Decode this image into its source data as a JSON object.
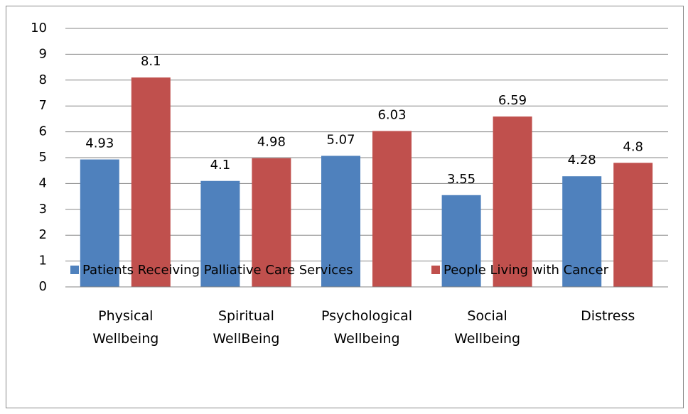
{
  "chart_data": {
    "type": "bar",
    "categories": [
      "Physical\nWellbeing",
      "Spiritual\nWellBeing",
      "Psychological\nWellbeing",
      "Social\nWellbeing",
      "Distress"
    ],
    "series": [
      {
        "name": "Patients Receiving Palliative Care Services",
        "color": "#4f81bd",
        "values": [
          4.93,
          4.1,
          5.07,
          3.55,
          4.28
        ]
      },
      {
        "name": "People Living with Cancer",
        "color": "#c0504d",
        "values": [
          8.1,
          4.98,
          6.03,
          6.59,
          4.8
        ]
      }
    ],
    "ylim": [
      0,
      10
    ],
    "yticks": [
      0,
      1,
      2,
      3,
      4,
      5,
      6,
      7,
      8,
      9,
      10
    ],
    "grid": true,
    "legend": "bottom"
  }
}
